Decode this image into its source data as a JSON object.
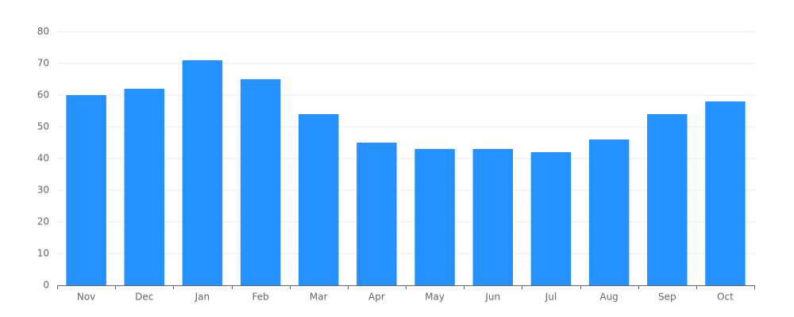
{
  "chart_data": {
    "type": "bar",
    "categories": [
      "Nov",
      "Dec",
      "Jan",
      "Feb",
      "Mar",
      "Apr",
      "May",
      "Jun",
      "Jul",
      "Aug",
      "Sep",
      "Oct"
    ],
    "values": [
      60,
      62,
      71,
      65,
      54,
      45,
      43,
      43,
      42,
      46,
      54,
      58
    ],
    "color": "#2491ff",
    "ylim": [
      0,
      80
    ],
    "yticks": [
      0,
      10,
      20,
      30,
      40,
      50,
      60,
      70,
      80
    ],
    "grid": true
  }
}
